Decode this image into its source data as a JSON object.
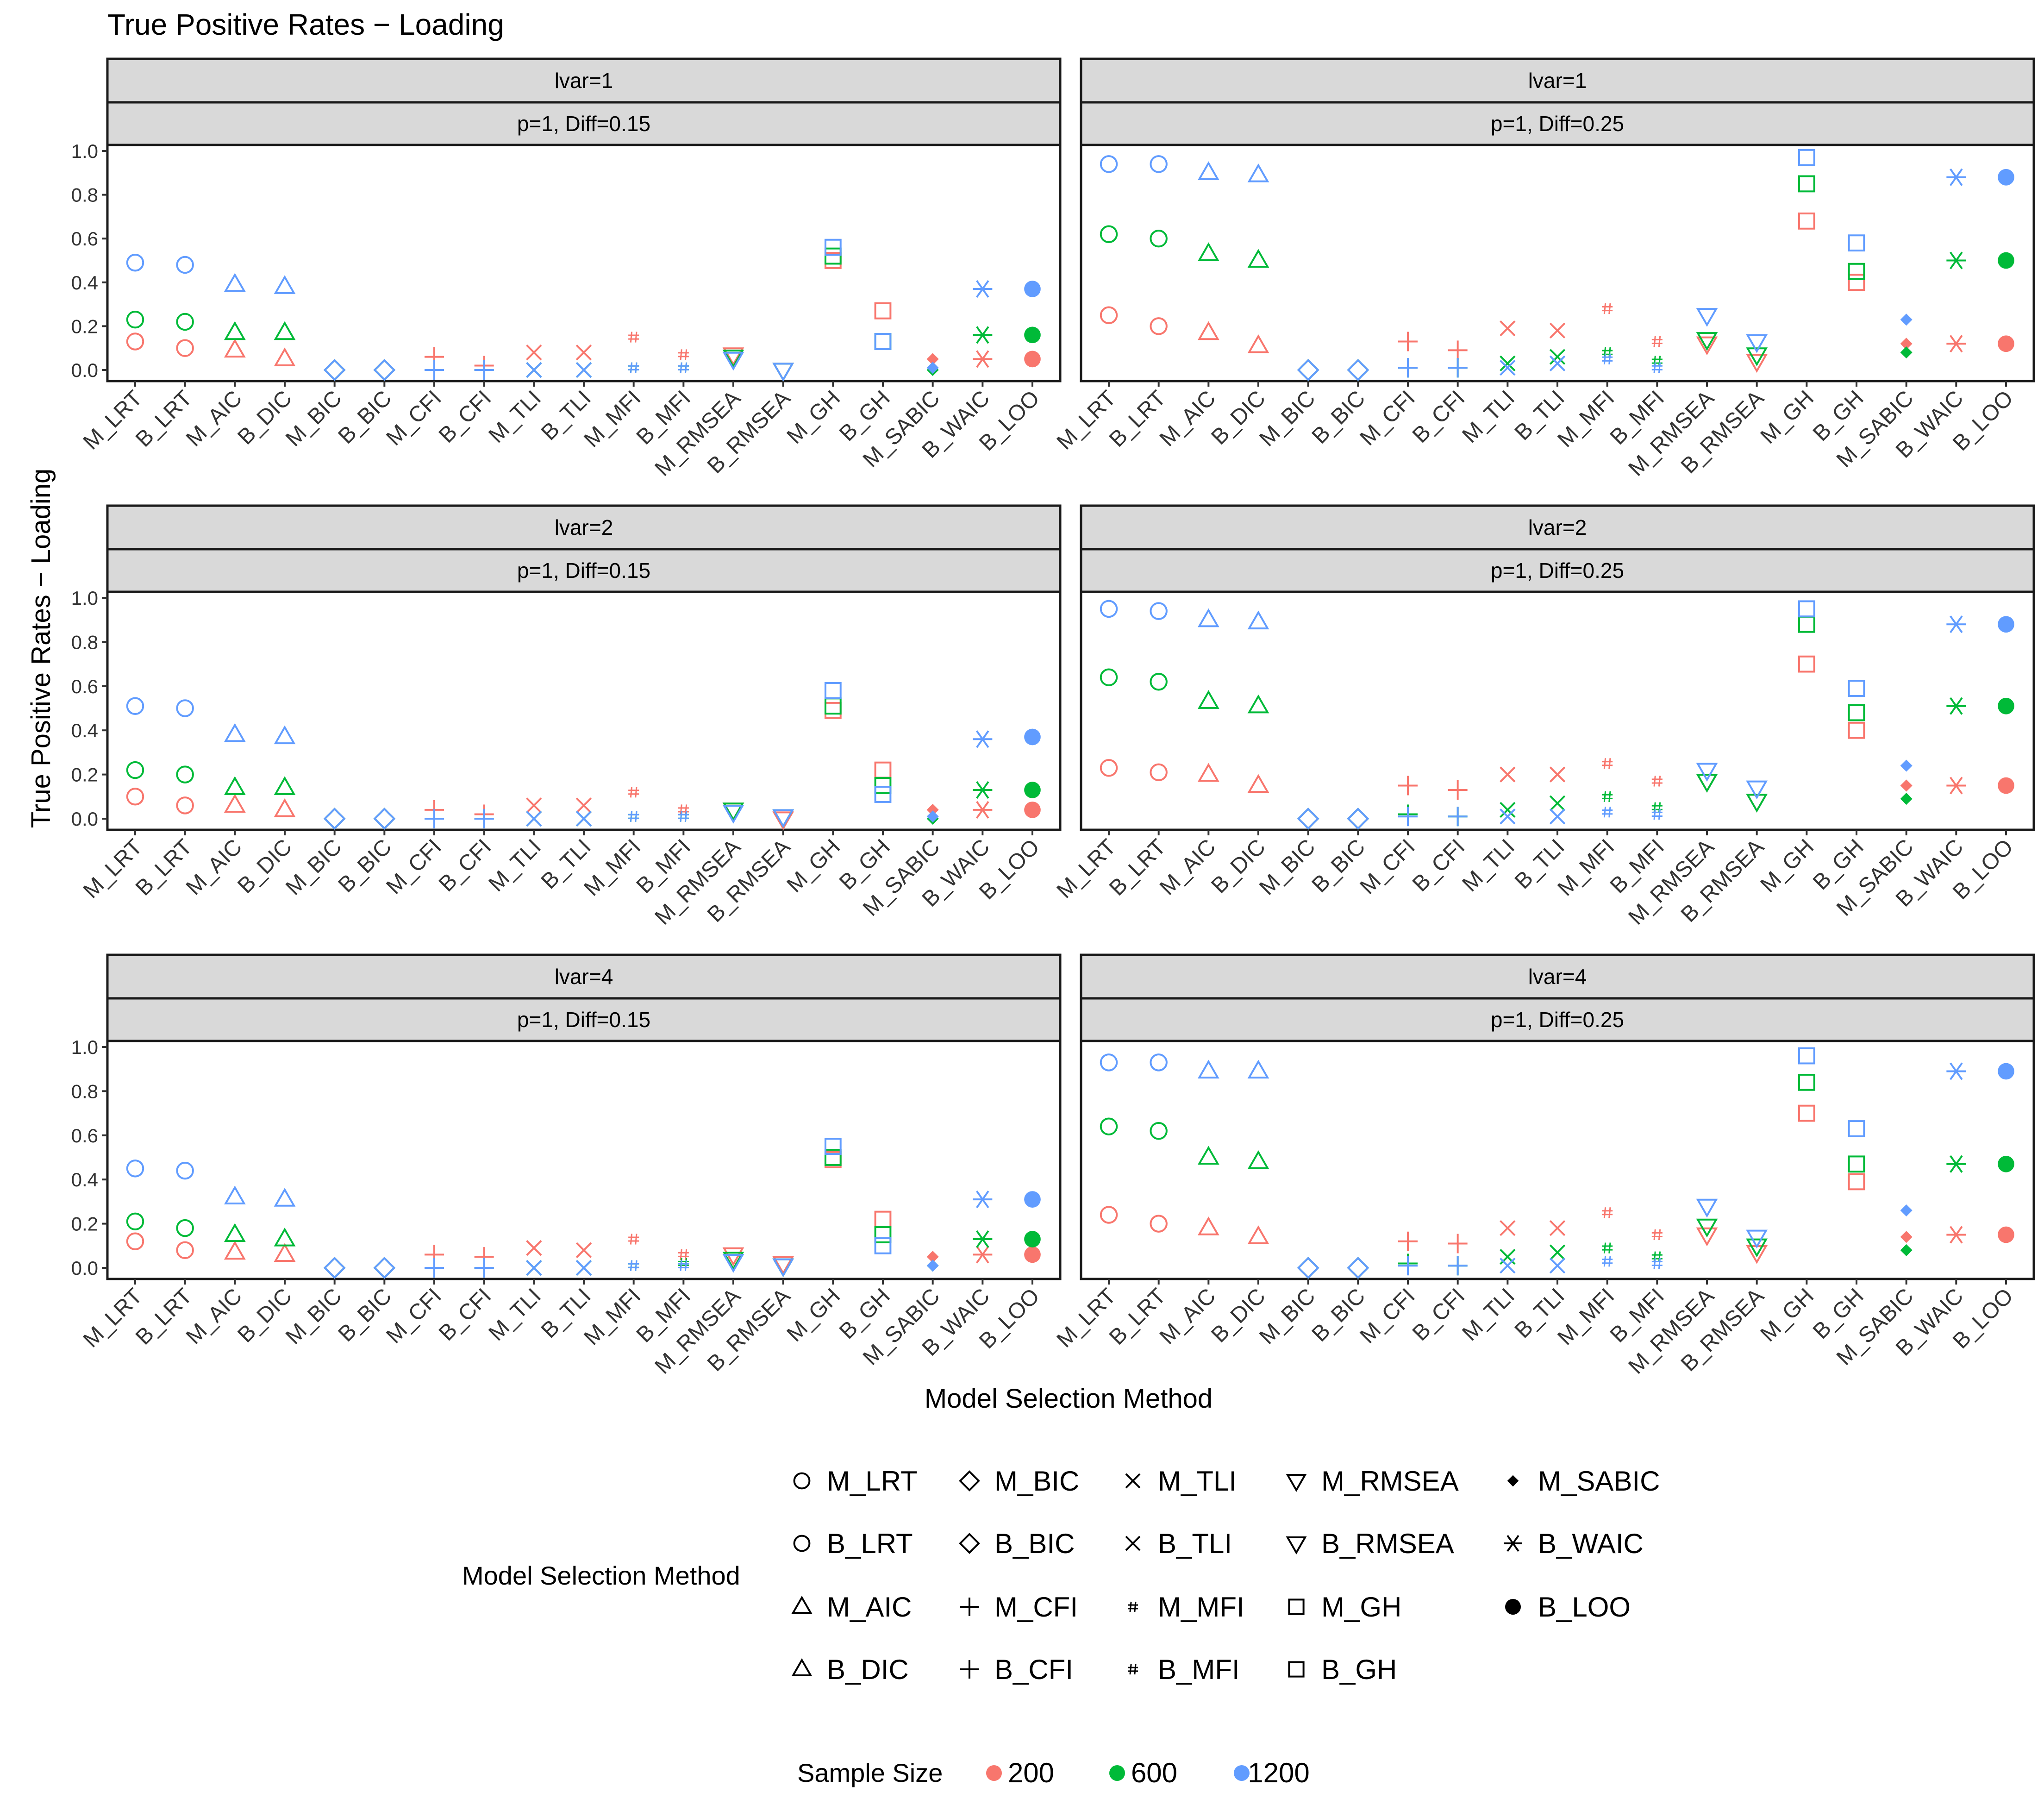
{
  "chart_data": {
    "type": "scatter",
    "title": "True Positive Rates − Loading",
    "xlabel": "Model Selection Method",
    "ylabel": "True Positive Rates − Loading",
    "ylim": [
      0,
      1.0
    ],
    "yticks": [
      "0.0",
      "0.2",
      "0.4",
      "0.6",
      "0.8",
      "1.0"
    ],
    "categories": [
      "M_LRT",
      "B_LRT",
      "M_AIC",
      "B_DIC",
      "M_BIC",
      "B_BIC",
      "M_CFI",
      "B_CFI",
      "M_TLI",
      "B_TLI",
      "M_MFI",
      "B_MFI",
      "M_RMSEA",
      "B_RMSEA",
      "M_GH",
      "B_GH",
      "M_SABIC",
      "B_WAIC",
      "B_LOO"
    ],
    "shapes": [
      "circle",
      "circle",
      "triangle",
      "triangle",
      "diamond",
      "diamond",
      "plus",
      "plus",
      "cross",
      "cross",
      "hash",
      "hash",
      "triangle-down",
      "triangle-down",
      "square",
      "square",
      "small-diamond",
      "asterisk",
      "filled-circle"
    ],
    "sample_sizes": [
      "200",
      "600",
      "1200"
    ],
    "colors": {
      "200": "#f8766d",
      "600": "#00ba38",
      "1200": "#619cff"
    },
    "panels": [
      {
        "strip1": "lvar=1",
        "strip2": "p=1, Diff=0.15",
        "series": {
          "200": [
            0.13,
            0.1,
            0.09,
            0.05,
            0.0,
            0.0,
            0.06,
            0.02,
            0.08,
            0.08,
            0.15,
            0.07,
            0.07,
            0.0,
            0.5,
            0.27,
            0.05,
            0.05,
            0.05
          ],
          "600": [
            0.23,
            0.22,
            0.17,
            0.17,
            0.0,
            0.0,
            0.0,
            0.0,
            0.0,
            0.0,
            0.01,
            0.01,
            0.06,
            0.0,
            0.52,
            0.13,
            0.0,
            0.16,
            0.16
          ],
          "1200": [
            0.49,
            0.48,
            0.39,
            0.38,
            0.0,
            0.0,
            0.0,
            0.0,
            0.0,
            0.0,
            0.01,
            0.01,
            0.05,
            0.0,
            0.56,
            0.13,
            0.01,
            0.37,
            0.37
          ]
        }
      },
      {
        "strip1": "lvar=1",
        "strip2": "p=1, Diff=0.25",
        "series": {
          "200": [
            0.25,
            0.2,
            0.17,
            0.11,
            0.0,
            0.0,
            0.13,
            0.09,
            0.19,
            0.18,
            0.28,
            0.13,
            0.12,
            0.04,
            0.68,
            0.4,
            0.12,
            0.12,
            0.12
          ],
          "600": [
            0.62,
            0.6,
            0.53,
            0.5,
            0.0,
            0.0,
            0.01,
            0.01,
            0.03,
            0.06,
            0.08,
            0.04,
            0.14,
            0.07,
            0.85,
            0.45,
            0.08,
            0.5,
            0.5
          ],
          "1200": [
            0.94,
            0.94,
            0.9,
            0.89,
            0.0,
            0.0,
            0.01,
            0.01,
            0.01,
            0.03,
            0.05,
            0.01,
            0.25,
            0.13,
            0.97,
            0.58,
            0.23,
            0.88,
            0.88
          ]
        }
      },
      {
        "strip1": "lvar=2",
        "strip2": "p=1, Diff=0.15",
        "series": {
          "200": [
            0.1,
            0.06,
            0.06,
            0.04,
            0.0,
            0.0,
            0.04,
            0.02,
            0.06,
            0.06,
            0.12,
            0.04,
            0.04,
            0.0,
            0.49,
            0.22,
            0.04,
            0.04,
            0.04
          ],
          "600": [
            0.22,
            0.2,
            0.14,
            0.14,
            0.0,
            0.0,
            0.0,
            0.0,
            0.0,
            0.0,
            0.01,
            0.01,
            0.04,
            0.01,
            0.51,
            0.15,
            0.0,
            0.13,
            0.13
          ],
          "1200": [
            0.51,
            0.5,
            0.38,
            0.37,
            0.0,
            0.0,
            0.0,
            0.0,
            0.0,
            0.0,
            0.01,
            0.01,
            0.03,
            0.01,
            0.58,
            0.11,
            0.01,
            0.36,
            0.37
          ]
        }
      },
      {
        "strip1": "lvar=2",
        "strip2": "p=1, Diff=0.25",
        "series": {
          "200": [
            0.23,
            0.21,
            0.2,
            0.15,
            0.0,
            0.0,
            0.15,
            0.13,
            0.2,
            0.2,
            0.25,
            0.17,
            0.17,
            0.08,
            0.7,
            0.4,
            0.15,
            0.15,
            0.15
          ],
          "600": [
            0.64,
            0.62,
            0.53,
            0.51,
            0.0,
            0.0,
            0.02,
            0.01,
            0.04,
            0.07,
            0.1,
            0.05,
            0.17,
            0.08,
            0.88,
            0.48,
            0.09,
            0.51,
            0.51
          ],
          "1200": [
            0.95,
            0.94,
            0.9,
            0.89,
            0.0,
            0.0,
            0.01,
            0.01,
            0.01,
            0.01,
            0.03,
            0.02,
            0.22,
            0.14,
            0.95,
            0.59,
            0.24,
            0.88,
            0.88
          ]
        }
      },
      {
        "strip1": "lvar=4",
        "strip2": "p=1, Diff=0.15",
        "series": {
          "200": [
            0.12,
            0.08,
            0.07,
            0.06,
            0.0,
            0.0,
            0.06,
            0.05,
            0.09,
            0.08,
            0.13,
            0.06,
            0.06,
            0.02,
            0.49,
            0.22,
            0.05,
            0.06,
            0.06
          ],
          "600": [
            0.21,
            0.18,
            0.15,
            0.13,
            0.0,
            0.0,
            0.0,
            0.0,
            0.0,
            0.0,
            0.01,
            0.02,
            0.04,
            0.01,
            0.5,
            0.15,
            0.01,
            0.13,
            0.13
          ],
          "1200": [
            0.45,
            0.44,
            0.32,
            0.31,
            0.0,
            0.0,
            0.0,
            0.0,
            0.0,
            0.0,
            0.01,
            0.01,
            0.03,
            0.01,
            0.55,
            0.1,
            0.01,
            0.31,
            0.31
          ]
        }
      },
      {
        "strip1": "lvar=4",
        "strip2": "p=1, Diff=0.25",
        "series": {
          "200": [
            0.24,
            0.2,
            0.18,
            0.14,
            0.0,
            0.0,
            0.12,
            0.11,
            0.18,
            0.18,
            0.25,
            0.15,
            0.15,
            0.07,
            0.7,
            0.39,
            0.14,
            0.15,
            0.15
          ],
          "600": [
            0.64,
            0.62,
            0.5,
            0.48,
            0.0,
            0.0,
            0.02,
            0.01,
            0.05,
            0.07,
            0.09,
            0.05,
            0.19,
            0.1,
            0.84,
            0.47,
            0.08,
            0.47,
            0.47
          ],
          "1200": [
            0.93,
            0.93,
            0.89,
            0.89,
            0.0,
            0.0,
            0.01,
            0.01,
            0.01,
            0.01,
            0.03,
            0.02,
            0.28,
            0.14,
            0.96,
            0.63,
            0.26,
            0.89,
            0.89
          ]
        }
      }
    ],
    "legend": {
      "shape_title": "Model Selection Method",
      "color_title": "Sample Size",
      "shape_position": "bottom",
      "color_position": "bottom"
    }
  }
}
